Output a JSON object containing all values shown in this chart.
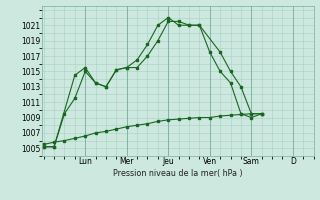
{
  "background_color": "#cce8df",
  "grid_color": "#aacfc5",
  "line_color": "#1a6620",
  "ylabel_text": "Pression niveau de la mer( hPa )",
  "ylim": [
    1004.0,
    1023.5
  ],
  "yticks": [
    1005,
    1007,
    1009,
    1011,
    1013,
    1015,
    1017,
    1019,
    1021
  ],
  "day_labels": [
    "Lun",
    "Mer",
    "Jeu",
    "Ven",
    "Sam",
    "D"
  ],
  "day_tick_x": [
    2.0,
    4.0,
    6.0,
    8.0,
    10.0,
    12.0
  ],
  "vline_x": [
    2.0,
    4.0,
    6.0,
    8.0,
    10.0,
    12.0
  ],
  "xlim": [
    -0.1,
    13.0
  ],
  "series1_x": [
    0,
    0.5,
    1.5,
    2.0,
    2.5,
    3.0,
    3.5,
    4.0,
    4.5,
    5.0,
    5.5,
    6.0,
    6.5,
    7.0,
    7.5,
    8.0,
    8.5,
    9.0,
    9.5,
    10.0,
    10.5
  ],
  "series1_y": [
    1005.2,
    1005.2,
    1014.5,
    1015.5,
    1013.5,
    1013.0,
    1015.2,
    1015.5,
    1015.5,
    1017.0,
    1019.0,
    1021.5,
    1021.5,
    1021.0,
    1021.0,
    1017.5,
    1015.0,
    1013.5,
    1009.5,
    1009.0,
    1009.5
  ],
  "series2_x": [
    0,
    0.5,
    1.0,
    1.5,
    2.0,
    2.5,
    3.0,
    3.5,
    4.0,
    4.5,
    5.0,
    5.5,
    6.0,
    6.5,
    7.0,
    7.5,
    8.5,
    9.0,
    9.5,
    10.0,
    10.5
  ],
  "series2_y": [
    1005.2,
    1005.2,
    1009.5,
    1011.5,
    1015.0,
    1013.5,
    1013.0,
    1015.2,
    1015.5,
    1016.5,
    1018.5,
    1021.0,
    1022.0,
    1021.0,
    1021.0,
    1021.0,
    1017.5,
    1015.0,
    1013.0,
    1009.5,
    1009.5
  ],
  "series3_x": [
    0,
    0.5,
    1.0,
    1.5,
    2.0,
    2.5,
    3.0,
    3.5,
    4.0,
    4.5,
    5.0,
    5.5,
    6.0,
    6.5,
    7.0,
    7.5,
    8.0,
    8.5,
    9.0,
    9.5,
    10.0,
    10.5
  ],
  "series3_y": [
    1005.5,
    1005.8,
    1006.0,
    1006.3,
    1006.6,
    1007.0,
    1007.2,
    1007.5,
    1007.8,
    1008.0,
    1008.2,
    1008.5,
    1008.7,
    1008.8,
    1008.9,
    1009.0,
    1009.0,
    1009.2,
    1009.3,
    1009.4,
    1009.5,
    1009.5
  ],
  "figsize": [
    3.2,
    2.0
  ],
  "dpi": 100
}
